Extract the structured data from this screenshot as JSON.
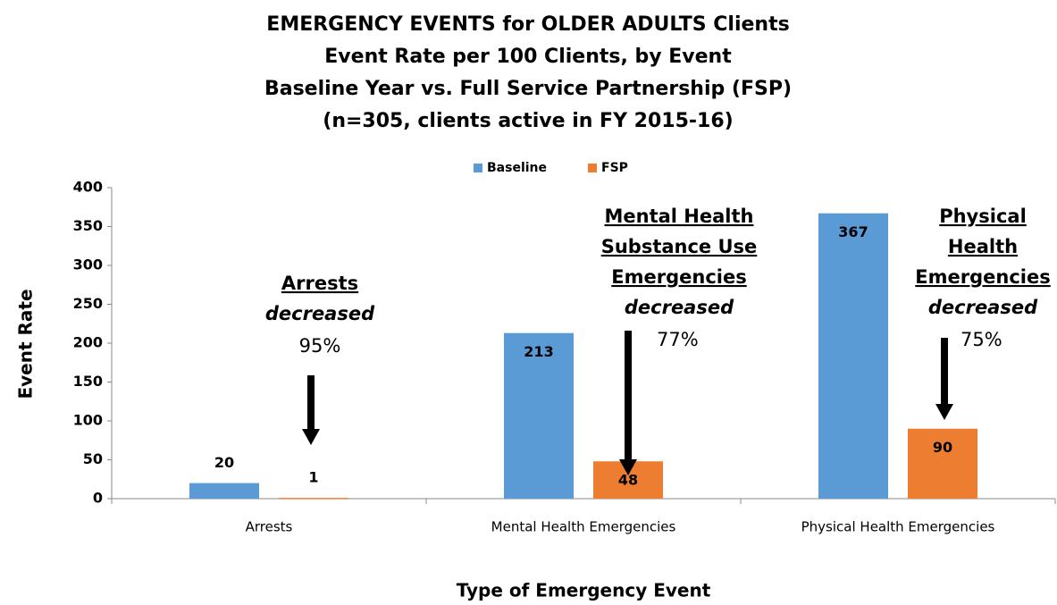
{
  "chart_data": {
    "type": "bar",
    "title": [
      "EMERGENCY EVENTS for OLDER ADULTS Clients",
      "Event Rate per 100 Clients, by Event",
      "Baseline Year vs. Full Service Partnership (FSP)",
      "(n=305, clients active in FY 2015-16)"
    ],
    "categories": [
      "Arrests",
      "Mental Health Emergencies",
      "Physical Health Emergencies"
    ],
    "series": [
      {
        "name": "Baseline",
        "color": "#5b9bd5",
        "values": [
          20,
          213,
          367
        ]
      },
      {
        "name": "FSP",
        "color": "#ed7d31",
        "values": [
          1,
          48,
          90
        ]
      }
    ],
    "ylim": [
      0,
      400
    ],
    "yticks": [
      0,
      50,
      100,
      150,
      200,
      250,
      300,
      350,
      400
    ],
    "x_label": "Type of Emergency Event",
    "y_label": "Event Rate",
    "legend": "top",
    "annotations": [
      {
        "heading": [
          "Arrests"
        ],
        "verb": "decreased",
        "change": "95%"
      },
      {
        "heading": [
          "Mental Health",
          "Substance Use",
          "Emergencies"
        ],
        "verb": "decreased",
        "change": "77%"
      },
      {
        "heading": [
          "Physical",
          "Health",
          "Emergencies"
        ],
        "verb": "decreased",
        "change": "75%"
      }
    ]
  }
}
